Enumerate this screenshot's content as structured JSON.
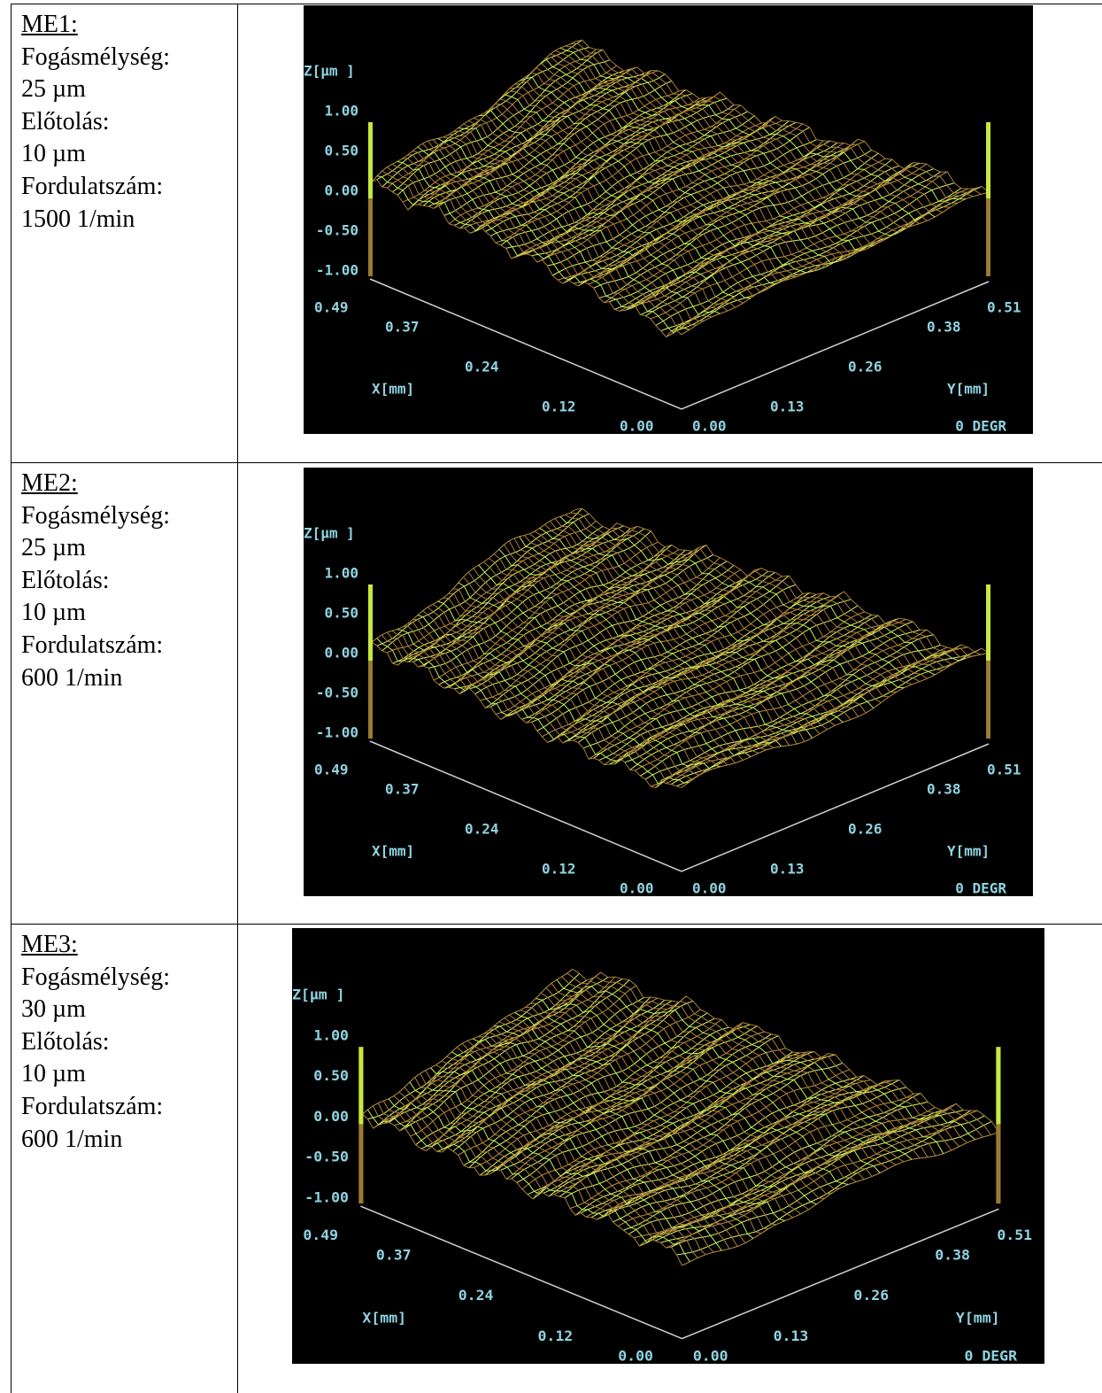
{
  "rows": [
    {
      "name": "ME1:",
      "lines": [
        "Fogásmélység:",
        "25 µm",
        "Előtolás:",
        "10 µm",
        "Fordulatszám:",
        "1500 1/min"
      ],
      "plot": {
        "z_label": "Z[µm ]",
        "z_ticks": [
          "1.00",
          "0.50",
          "0.00",
          "-0.50",
          "-1.00"
        ],
        "x_label": "X[mm]",
        "x_ticks": [
          "0.49",
          "0.37",
          "0.24",
          "0.12",
          "0.00"
        ],
        "y_label": "Y[mm]",
        "y_ticks": [
          "0.00",
          "0.13",
          "0.26",
          "0.38",
          "0.51"
        ],
        "angle": "0 DEGR"
      }
    },
    {
      "name": "ME2:",
      "lines": [
        "Fogásmélység:",
        "25 µm",
        "Előtolás:",
        "10 µm",
        "Fordulatszám:",
        "600 1/min"
      ],
      "plot": {
        "z_label": "Z[µm ]",
        "z_ticks": [
          "1.00",
          "0.50",
          "0.00",
          "-0.50",
          "-1.00"
        ],
        "x_label": "X[mm]",
        "x_ticks": [
          "0.49",
          "0.37",
          "0.24",
          "0.12",
          "0.00"
        ],
        "y_label": "Y[mm]",
        "y_ticks": [
          "0.00",
          "0.13",
          "0.26",
          "0.38",
          "0.51"
        ],
        "angle": "0 DEGR"
      }
    },
    {
      "name": "ME3:",
      "lines": [
        "Fogásmélység:",
        "30 µm",
        "Előtolás:",
        "10 µm",
        "Fordulatszám:",
        "600 1/min"
      ],
      "plot": {
        "z_label": "Z[µm ]",
        "z_ticks": [
          "1.00",
          "0.50",
          "0.00",
          "-0.50",
          "-1.00"
        ],
        "x_label": "X[mm]",
        "x_ticks": [
          "0.49",
          "0.37",
          "0.24",
          "0.12",
          "0.00"
        ],
        "y_label": "Y[mm]",
        "y_ticks": [
          "0.00",
          "0.13",
          "0.26",
          "0.38",
          "0.51"
        ],
        "angle": "0 DEGR"
      }
    }
  ]
}
